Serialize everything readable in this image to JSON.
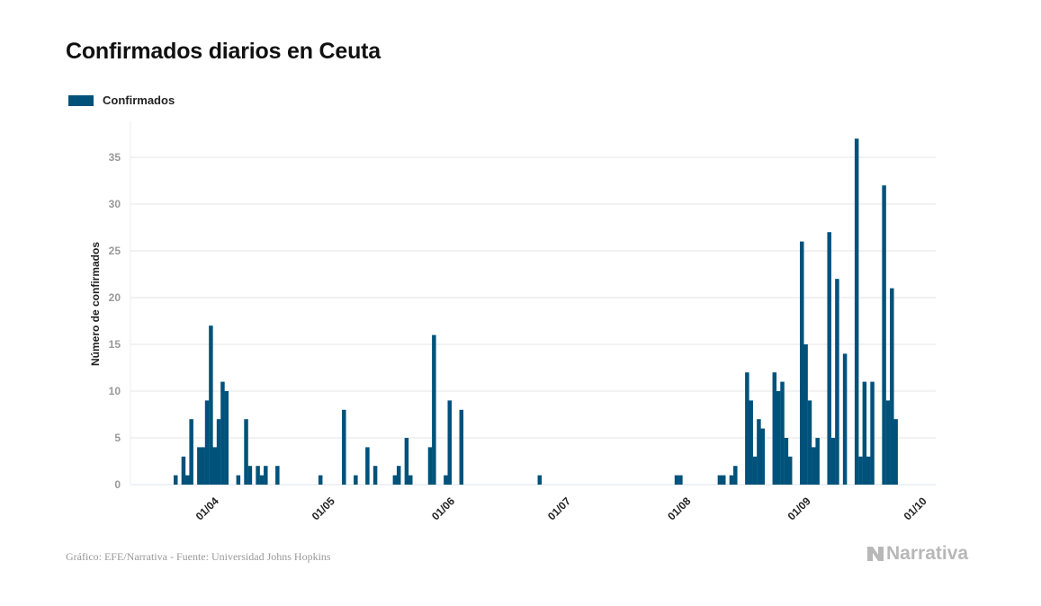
{
  "title": "Confirmados diarios en Ceuta",
  "legend": {
    "label": "Confirmados"
  },
  "source": "Gráfico: EFE/Narrativa - Fuente: Universidad Johns Hopkins",
  "logo": "Narrativa",
  "colors": {
    "bar": "#00527a",
    "grid": "#e6e6e6",
    "tick": "#999999"
  },
  "chart_data": {
    "type": "bar",
    "title": "Confirmados diarios en Ceuta",
    "xlabel": "",
    "ylabel": "Número de confirmados",
    "ylim": [
      0,
      38
    ],
    "yticks": [
      0,
      5,
      10,
      15,
      20,
      25,
      30,
      35
    ],
    "grid": true,
    "legend_position": "top-left",
    "start_date": "2020-03-23",
    "xtick_labels": [
      {
        "label": "01/04",
        "day": 9
      },
      {
        "label": "01/05",
        "day": 39
      },
      {
        "label": "01/06",
        "day": 70
      },
      {
        "label": "01/07",
        "day": 100
      },
      {
        "label": "01/08",
        "day": 131
      },
      {
        "label": "01/09",
        "day": 162
      },
      {
        "label": "01/10",
        "day": 192
      }
    ],
    "series": [
      {
        "name": "Confirmados",
        "values": [
          1,
          0,
          3,
          1,
          7,
          0,
          4,
          4,
          9,
          17,
          4,
          7,
          11,
          10,
          0,
          0,
          1,
          0,
          7,
          2,
          0,
          2,
          1,
          2,
          0,
          0,
          2,
          0,
          0,
          0,
          0,
          0,
          0,
          0,
          0,
          0,
          0,
          1,
          0,
          0,
          0,
          0,
          0,
          8,
          0,
          0,
          1,
          0,
          0,
          4,
          0,
          2,
          0,
          0,
          0,
          0,
          1,
          2,
          0,
          5,
          1,
          0,
          0,
          0,
          0,
          4,
          16,
          0,
          0,
          1,
          9,
          0,
          0,
          8,
          0,
          0,
          0,
          0,
          0,
          0,
          0,
          0,
          0,
          0,
          0,
          0,
          0,
          0,
          0,
          0,
          0,
          0,
          0,
          1,
          0,
          0,
          0,
          0,
          0,
          0,
          0,
          0,
          0,
          0,
          0,
          0,
          0,
          0,
          0,
          0,
          0,
          0,
          0,
          0,
          0,
          0,
          0,
          0,
          0,
          0,
          0,
          0,
          0,
          0,
          0,
          0,
          0,
          0,
          1,
          1,
          0,
          0,
          0,
          0,
          0,
          0,
          0,
          0,
          0,
          1,
          1,
          0,
          1,
          2,
          0,
          0,
          12,
          9,
          3,
          7,
          6,
          0,
          0,
          12,
          10,
          11,
          5,
          3,
          0,
          0,
          26,
          15,
          9,
          4,
          5,
          0,
          0,
          27,
          5,
          22,
          0,
          14,
          0,
          0,
          37,
          3,
          11,
          3,
          11,
          0,
          0,
          32,
          9,
          21,
          7
        ]
      }
    ]
  }
}
